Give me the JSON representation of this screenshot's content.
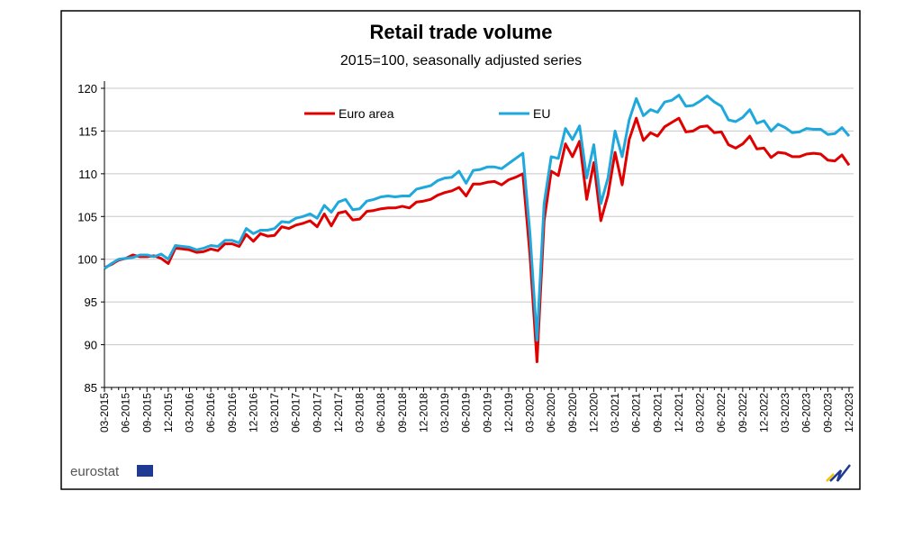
{
  "chart_data": {
    "type": "line",
    "title": "Retail trade volume",
    "subtitle": "2015=100, seasonally adjusted series",
    "source_logo": "eurostat",
    "legend": "upper center",
    "grid": true,
    "ylim": [
      85,
      120
    ],
    "yticks": [
      85,
      90,
      95,
      100,
      105,
      110,
      115,
      120
    ],
    "categories": [
      "03-2015",
      null,
      null,
      "06-2015",
      null,
      null,
      "09-2015",
      null,
      null,
      "12-2015",
      null,
      null,
      "03-2016",
      null,
      null,
      "06-2016",
      null,
      null,
      "09-2016",
      null,
      null,
      "12-2016",
      null,
      null,
      "03-2017",
      null,
      null,
      "06-2017",
      null,
      null,
      "09-2017",
      null,
      null,
      "12-2017",
      null,
      null,
      "03-2018",
      null,
      null,
      "06-2018",
      null,
      null,
      "09-2018",
      null,
      null,
      "12-2018",
      null,
      null,
      "03-2019",
      null,
      null,
      "06-2019",
      null,
      null,
      "09-2019",
      null,
      null,
      "12-2019",
      null,
      null,
      "03-2020",
      null,
      null,
      "06-2020",
      null,
      null,
      "09-2020",
      null,
      null,
      "12-2020",
      null,
      null,
      "03-2021",
      null,
      null,
      "06-2021",
      null,
      null,
      "09-2021",
      null,
      null,
      "12-2021",
      null,
      null,
      "03-2022",
      null,
      null,
      "06-2022",
      null,
      null,
      "09-2022",
      null,
      null,
      "12-2022",
      null,
      null,
      "03-2023",
      null,
      null,
      "06-2023",
      null,
      null,
      "09-2023",
      null,
      null,
      "12-2023"
    ],
    "series": [
      {
        "name": "Euro area",
        "color": "#e00000",
        "values": [
          99.0,
          99.4,
          99.9,
          100.1,
          100.5,
          100.3,
          100.3,
          100.4,
          100.1,
          99.5,
          101.3,
          101.2,
          101.1,
          100.8,
          100.9,
          101.2,
          101.0,
          101.8,
          101.8,
          101.5,
          102.9,
          102.1,
          103.0,
          102.7,
          102.8,
          103.8,
          103.6,
          104.0,
          104.2,
          104.5,
          103.8,
          105.3,
          103.9,
          105.4,
          105.6,
          104.6,
          104.7,
          105.6,
          105.7,
          105.9,
          106.0,
          106.0,
          106.2,
          106.0,
          106.7,
          106.8,
          107.0,
          107.5,
          107.8,
          108.0,
          108.4,
          107.4,
          108.8,
          108.8,
          109.0,
          109.1,
          108.7,
          109.3,
          109.6,
          110.0,
          100.5,
          88.0,
          104.5,
          110.3,
          109.8,
          113.5,
          112.0,
          113.8,
          107.0,
          111.3,
          104.5,
          107.5,
          112.5,
          108.7,
          114.0,
          116.5,
          113.9,
          114.8,
          114.4,
          115.5,
          116.0,
          116.5,
          114.9,
          115.0,
          115.5,
          115.6,
          114.8,
          114.9,
          113.4,
          113.0,
          113.5,
          114.4,
          112.9,
          113.0,
          111.9,
          112.5,
          112.4,
          112.0,
          112.0,
          112.3,
          112.4,
          112.3,
          111.6,
          111.5,
          112.2,
          111.0
        ]
      },
      {
        "name": "EU",
        "color": "#1fa8dc",
        "values": [
          98.9,
          99.5,
          100.0,
          100.1,
          100.2,
          100.5,
          100.5,
          100.3,
          100.6,
          100.0,
          101.6,
          101.5,
          101.4,
          101.1,
          101.3,
          101.6,
          101.5,
          102.2,
          102.2,
          101.9,
          103.6,
          103.0,
          103.4,
          103.4,
          103.6,
          104.4,
          104.3,
          104.8,
          105.0,
          105.3,
          104.8,
          106.3,
          105.5,
          106.7,
          107.0,
          105.8,
          105.9,
          106.8,
          107.0,
          107.3,
          107.4,
          107.3,
          107.4,
          107.4,
          108.2,
          108.4,
          108.6,
          109.2,
          109.5,
          109.6,
          110.3,
          108.9,
          110.4,
          110.5,
          110.8,
          110.8,
          110.6,
          111.2,
          111.8,
          112.4,
          103.0,
          90.5,
          106.5,
          112.0,
          111.8,
          115.3,
          114.0,
          115.6,
          109.5,
          113.4,
          106.5,
          109.5,
          115.0,
          112.0,
          116.3,
          118.8,
          116.8,
          117.5,
          117.2,
          118.4,
          118.6,
          119.2,
          117.9,
          118.0,
          118.5,
          119.1,
          118.4,
          117.9,
          116.3,
          116.1,
          116.6,
          117.5,
          115.9,
          116.2,
          115.0,
          115.8,
          115.4,
          114.8,
          114.9,
          115.3,
          115.2,
          115.2,
          114.6,
          114.7,
          115.4,
          114.4
        ]
      }
    ]
  }
}
